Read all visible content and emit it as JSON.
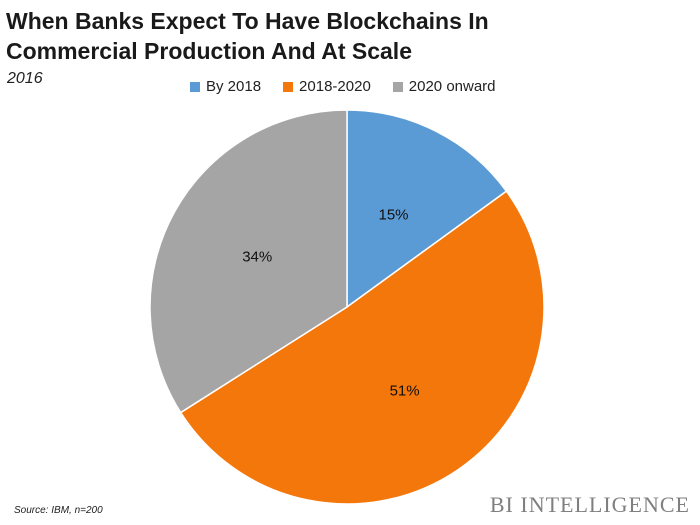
{
  "title": "When Banks Expect To Have Blockchains In Commercial Production And At Scale",
  "subtitle": "2016",
  "source": "Source: IBM, n=200",
  "brand": "BI INTELLIGENCE",
  "chart_data": {
    "type": "pie",
    "title": "When Banks Expect To Have Blockchains In Commercial Production And At Scale",
    "subtitle": "2016",
    "legend_position": "top",
    "slices": [
      {
        "label": "By 2018",
        "value": 15,
        "display": "15%",
        "color": "#5b9bd5"
      },
      {
        "label": "2018-2020",
        "value": 51,
        "display": "51%",
        "color": "#f4770b"
      },
      {
        "label": "2020 onward",
        "value": 34,
        "display": "34%",
        "color": "#a5a5a5"
      }
    ]
  }
}
